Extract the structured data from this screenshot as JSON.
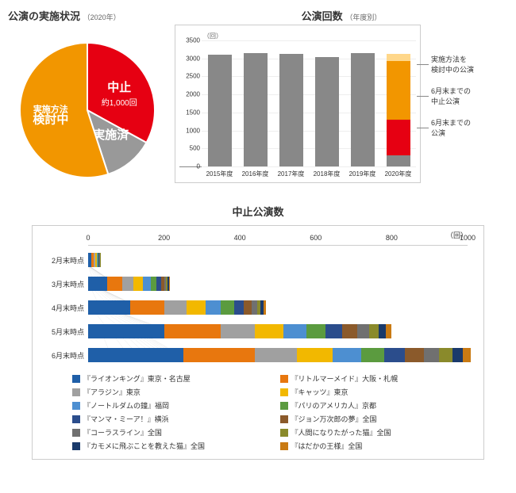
{
  "pie": {
    "title": "公演の実施状況",
    "subtitle": "（2020年）",
    "slices": [
      {
        "label": "中止",
        "sublabel": "約1,000回",
        "value": 33,
        "color": "#e60012",
        "text_color": "#ffffff"
      },
      {
        "label": "実施済",
        "value": 12,
        "color": "#999999",
        "text_color": "#ffffff"
      },
      {
        "label": "実施方法\n検討中",
        "value": 55,
        "color": "#f29600",
        "text_color": "#ffffff"
      }
    ],
    "label_fontsize": 12
  },
  "bar": {
    "title": "公演回数",
    "subtitle": "（年度別）",
    "unit": "（回）",
    "ylim": [
      0,
      3500
    ],
    "ytick_step": 500,
    "categories": [
      "2015年度",
      "2016年度",
      "2017年度",
      "2018年度",
      "2019年度",
      "2020年度"
    ],
    "series": [
      {
        "values": [
          3080,
          3120,
          3110,
          3020,
          3130,
          300
        ],
        "color": "#888888"
      },
      {
        "values": [
          0,
          0,
          0,
          0,
          0,
          1000
        ],
        "color": "#e60012"
      },
      {
        "values": [
          0,
          0,
          0,
          0,
          0,
          1600
        ],
        "color": "#f29600"
      },
      {
        "values": [
          0,
          0,
          0,
          0,
          0,
          200
        ],
        "color": "#ffd78a"
      }
    ],
    "annotations": [
      {
        "text": "実施方法を\n検討中の公演"
      },
      {
        "text": "6月末までの\n中止公演"
      },
      {
        "text": "6月末までの\n公演"
      }
    ]
  },
  "hbar": {
    "title": "中止公演数",
    "unit": "（回）",
    "xlim": [
      0,
      1000
    ],
    "xtick_step": 200,
    "rows": [
      "2月末時点",
      "3月末時点",
      "4月末時点",
      "5月末時点",
      "6月末時点"
    ],
    "series": [
      {
        "label": "『ライオンキング』東京・名古屋",
        "color": "#1f5fa8",
        "values": [
          8,
          50,
          110,
          200,
          250
        ]
      },
      {
        "label": "『リトルマーメイド』大阪・札幌",
        "color": "#e8770e",
        "values": [
          6,
          40,
          90,
          150,
          190
        ]
      },
      {
        "label": "『アラジン』東京",
        "color": "#a0a0a0",
        "values": [
          4,
          30,
          60,
          90,
          110
        ]
      },
      {
        "label": "『キャッツ』東京",
        "color": "#f2b800",
        "values": [
          4,
          25,
          50,
          75,
          95
        ]
      },
      {
        "label": "『ノートルダムの鐘』福岡",
        "color": "#4d8fd1",
        "values": [
          3,
          20,
          40,
          60,
          75
        ]
      },
      {
        "label": "『パリのアメリカ人』京都",
        "color": "#5b9b3f",
        "values": [
          2,
          15,
          35,
          50,
          60
        ]
      },
      {
        "label": "『マンマ・ミーア！』横浜",
        "color": "#2b4d8c",
        "values": [
          2,
          12,
          25,
          45,
          55
        ]
      },
      {
        "label": "『ジョン万次郎の夢』全国",
        "color": "#8b5a2b",
        "values": [
          1,
          8,
          20,
          40,
          50
        ]
      },
      {
        "label": "『コーラスライン』全国",
        "color": "#707070",
        "values": [
          1,
          6,
          15,
          30,
          40
        ]
      },
      {
        "label": "『人間になりたがった猫』全国",
        "color": "#8a8a2b",
        "values": [
          1,
          4,
          10,
          25,
          35
        ]
      },
      {
        "label": "『カモメに飛ぶことを教えた猫』全国",
        "color": "#1a3a6b",
        "values": [
          0,
          3,
          8,
          20,
          28
        ]
      },
      {
        "label": "『はだかの王様』全国",
        "color": "#c97a13",
        "values": [
          0,
          2,
          5,
          15,
          20
        ]
      }
    ]
  }
}
